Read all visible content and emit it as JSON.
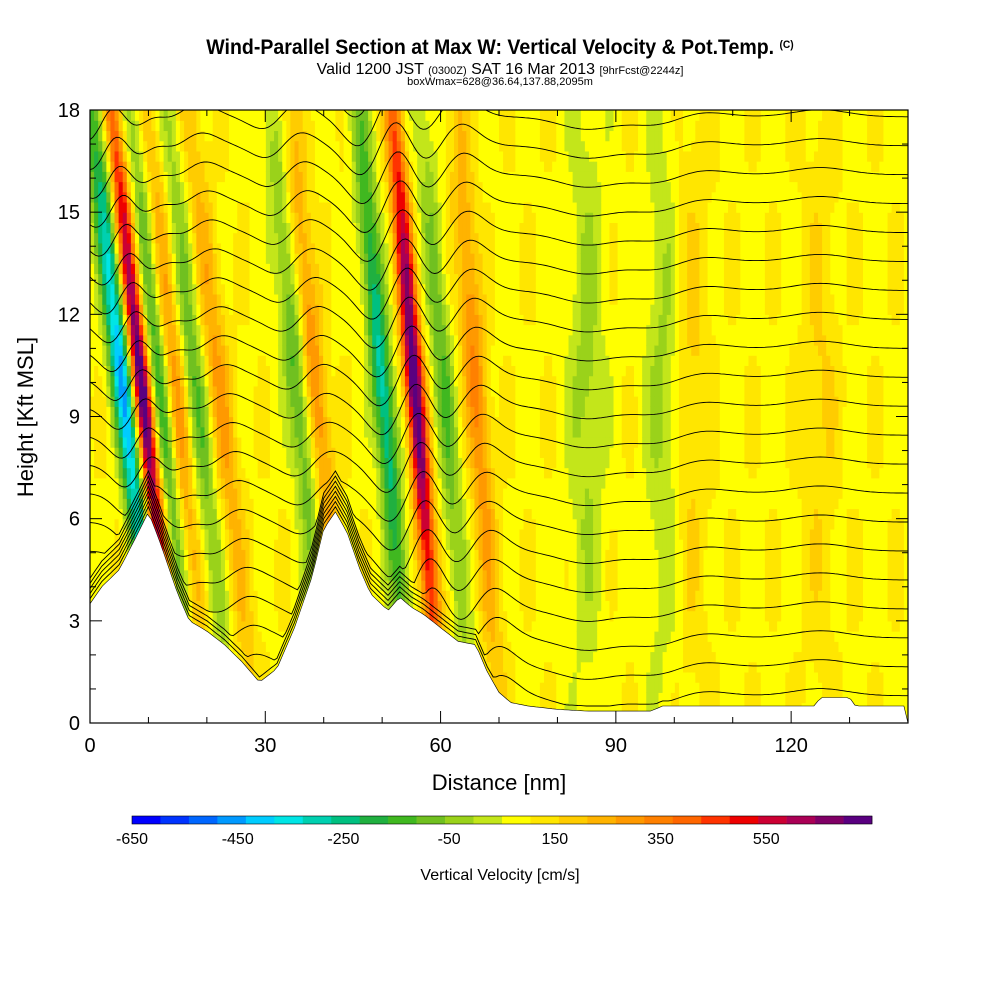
{
  "header": {
    "title": "Wind-Parallel Section at Max W: Vertical Velocity & Pot.Temp.",
    "copyright": "(C)",
    "valid_main_1": "Valid 1200 JST",
    "valid_utc": "(0300Z)",
    "valid_main_2": "SAT 16 Mar 2013",
    "forecast": "[9hrFcst@2244z]",
    "box_info": "boxWmax=628@36.64,137.88,2095m"
  },
  "chart_data": {
    "type": "heatmap",
    "xlabel": "Distance [nm]",
    "ylabel": "Height [Kft MSL]",
    "xlim": [
      0,
      140
    ],
    "ylim": [
      0,
      18
    ],
    "x_ticks": [
      0,
      30,
      60,
      90,
      120
    ],
    "y_ticks": [
      0,
      3,
      6,
      9,
      12,
      15,
      18
    ],
    "colorbar": {
      "label": "Vertical Velocity [cm/s]",
      "range": [
        -650,
        750
      ],
      "step": 50,
      "tick_values": [
        -650,
        -450,
        -250,
        -50,
        150,
        350,
        550
      ],
      "tick_labels": [
        "-650",
        "-450",
        "-250",
        "-50",
        "150",
        "350",
        "550"
      ],
      "colors": [
        "#0000ff",
        "#0033ff",
        "#0066ff",
        "#0099ff",
        "#00ccff",
        "#00e5e5",
        "#00d0b0",
        "#00c080",
        "#20b040",
        "#40b820",
        "#70c020",
        "#9ad21a",
        "#c3e61a",
        "#ffff00",
        "#ffe600",
        "#ffcc00",
        "#ffb300",
        "#ff9900",
        "#ff8000",
        "#ff6600",
        "#ff3300",
        "#ee0000",
        "#cc0033",
        "#aa0055",
        "#800066",
        "#5a0080"
      ]
    },
    "terrain_height_kft": [
      [
        0,
        3.5
      ],
      [
        2,
        4.0
      ],
      [
        5,
        4.5
      ],
      [
        8,
        5.5
      ],
      [
        10,
        6.2
      ],
      [
        12,
        5.3
      ],
      [
        13,
        4.8
      ],
      [
        15,
        3.8
      ],
      [
        17,
        3.0
      ],
      [
        20,
        2.7
      ],
      [
        23,
        2.3
      ],
      [
        26,
        1.8
      ],
      [
        29,
        1.2
      ],
      [
        32,
        1.6
      ],
      [
        35,
        2.8
      ],
      [
        38,
        4.3
      ],
      [
        40,
        5.7
      ],
      [
        42,
        6.2
      ],
      [
        44,
        5.6
      ],
      [
        46,
        4.6
      ],
      [
        48,
        3.8
      ],
      [
        51,
        3.3
      ],
      [
        53,
        3.7
      ],
      [
        55,
        3.4
      ],
      [
        57,
        3.2
      ],
      [
        60,
        2.8
      ],
      [
        63,
        2.4
      ],
      [
        66,
        2.3
      ],
      [
        68,
        1.5
      ],
      [
        70,
        0.9
      ],
      [
        72,
        0.6
      ],
      [
        75,
        0.5
      ],
      [
        80,
        0.4
      ],
      [
        85,
        0.35
      ],
      [
        96,
        0.35
      ],
      [
        98,
        0.5
      ],
      [
        112,
        0.5
      ],
      [
        124,
        0.5
      ],
      [
        125,
        0.75
      ],
      [
        130,
        0.75
      ],
      [
        131,
        0.5
      ],
      [
        140,
        0.5
      ]
    ],
    "updraft_cores": [
      {
        "x_base": 15,
        "lean": -2.5,
        "peak_cm_s": 650,
        "width_nm": 1.5
      },
      {
        "x_base": 20,
        "lean": -2.2,
        "peak_cm_s": 200,
        "width_nm": 2.0
      },
      {
        "x_base": 28,
        "lean": -2.4,
        "peak_cm_s": 180,
        "width_nm": 2.2
      },
      {
        "x_base": 44,
        "lean": -2.2,
        "peak_cm_s": 230,
        "width_nm": 2.0
      },
      {
        "x_base": 60,
        "lean": -1.8,
        "peak_cm_s": 650,
        "width_nm": 1.6
      },
      {
        "x_base": 70,
        "lean": -1.6,
        "peak_cm_s": 230,
        "width_nm": 2.0
      },
      {
        "x_base": 103,
        "lean": 0,
        "peak_cm_s": 80,
        "width_nm": 3.0
      },
      {
        "x_base": 125,
        "lean": 0,
        "peak_cm_s": 70,
        "width_nm": 3.0
      }
    ],
    "downdraft_cores": [
      {
        "x_base": 12,
        "lean": -2.6,
        "peak_cm_s": -520,
        "width_nm": 1.8
      },
      {
        "x_base": 18,
        "lean": -2.4,
        "peak_cm_s": -260,
        "width_nm": 1.6
      },
      {
        "x_base": 24,
        "lean": -2.4,
        "peak_cm_s": -200,
        "width_nm": 2.0
      },
      {
        "x_base": 41,
        "lean": -2.2,
        "peak_cm_s": -220,
        "width_nm": 2.0
      },
      {
        "x_base": 55,
        "lean": -2.0,
        "peak_cm_s": -380,
        "width_nm": 1.8
      },
      {
        "x_base": 65,
        "lean": -1.8,
        "peak_cm_s": -200,
        "width_nm": 1.8
      },
      {
        "x_base": 85,
        "lean": 0,
        "peak_cm_s": -120,
        "width_nm": 3.0
      },
      {
        "x_base": 98,
        "lean": 0,
        "peak_cm_s": -110,
        "width_nm": 3.0
      }
    ]
  }
}
